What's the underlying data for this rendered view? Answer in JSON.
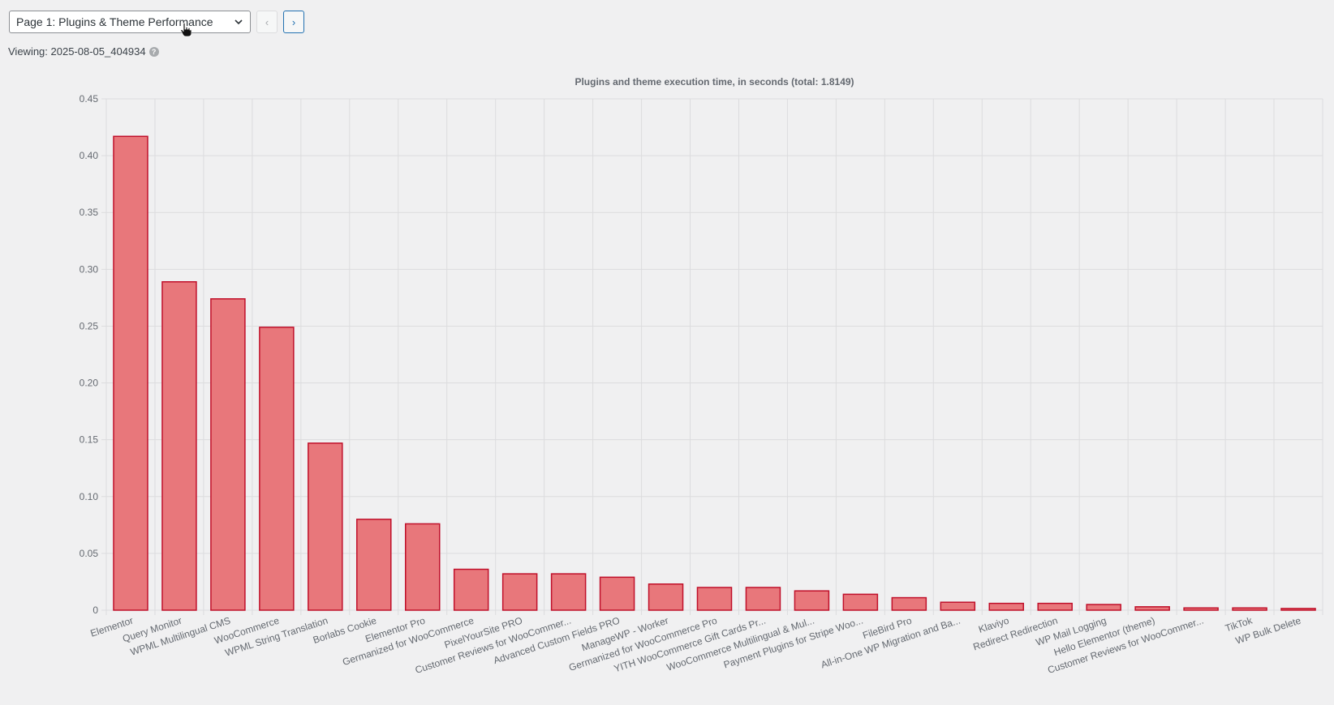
{
  "toolbar": {
    "page_select": "Page 1: Plugins & Theme Performance",
    "prev_label": "‹",
    "next_label": "›"
  },
  "viewing": {
    "label": "Viewing: 2025-08-05_404934",
    "help_icon": "question-circle-icon"
  },
  "colors": {
    "bar_fill": "#e8777b",
    "bar_stroke": "#c0102a",
    "grid": "#dcdcde"
  },
  "chart_data": {
    "type": "bar",
    "title": "Plugins and theme execution time, in seconds (total: 1.8149)",
    "xlabel": "",
    "ylabel": "",
    "ylim": [
      0,
      0.45
    ],
    "yticks": [
      "0",
      "0.05",
      "0.10",
      "0.15",
      "0.20",
      "0.25",
      "0.30",
      "0.35",
      "0.40",
      "0.45"
    ],
    "grid": true,
    "categories": [
      "Elementor",
      "Query Monitor",
      "WPML Multilingual CMS",
      "WooCommerce",
      "WPML String Translation",
      "Borlabs Cookie",
      "Elementor Pro",
      "Germanized for WooCommerce",
      "PixelYourSite PRO",
      "Customer Reviews for WooCommer...",
      "Advanced Custom Fields PRO",
      "ManageWP - Worker",
      "Germanized for WooCommerce Pro",
      "YITH WooCommerce Gift Cards Pr...",
      "WooCommerce Multilingual & Mul...",
      "Payment Plugins for Stripe Woo...",
      "FileBird Pro",
      "All-in-One WP Migration and Ba...",
      "Klaviyo",
      "Redirect Redirection",
      "WP Mail Logging",
      "Hello Elementor (theme)",
      "Customer Reviews for WooCommer...",
      "TikTok",
      "WP Bulk Delete"
    ],
    "values": [
      0.417,
      0.289,
      0.274,
      0.249,
      0.147,
      0.08,
      0.076,
      0.036,
      0.032,
      0.032,
      0.029,
      0.023,
      0.02,
      0.02,
      0.017,
      0.014,
      0.011,
      0.007,
      0.006,
      0.006,
      0.005,
      0.003,
      0.002,
      0.002,
      0.0015
    ]
  }
}
